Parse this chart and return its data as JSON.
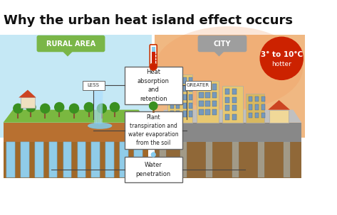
{
  "title": "Why the urban heat island effect occurs",
  "title_fontsize": 13,
  "title_color": "#111111",
  "bg_color": "#ffffff",
  "rural_label": "RURAL AREA",
  "city_label": "CITY",
  "rural_label_bg": "#7ab648",
  "city_label_bg": "#9e9e9e",
  "box1_text": "Heat\nabsorption\nand\nretention",
  "box2_text": "Plant\ntranspiration and\nwater evaporation\nfrom the soil",
  "box3_text": "Water\npenetration",
  "less_label": "LESS",
  "greater_label": "GREATER",
  "hot_circle_color": "#cc2200",
  "box_edge_color": "#666666",
  "box_fill": "#ffffff",
  "rural_sky_color": "#c5e8f5",
  "city_sky_color": "#f0b882",
  "ground_brown": "#b87030",
  "grass_color": "#7ab840",
  "road_color": "#b0b0b0",
  "building_color": "#e8c870",
  "building_dark": "#c8a848",
  "roof_color": "#cc4422",
  "tree_color": "#3a9020",
  "water_color": "#80ccee",
  "thermometer_red": "#cc2200",
  "thermometer_blue": "#88ccee",
  "stripe_color": "#90cce8",
  "city_haze_color": "#f09050"
}
